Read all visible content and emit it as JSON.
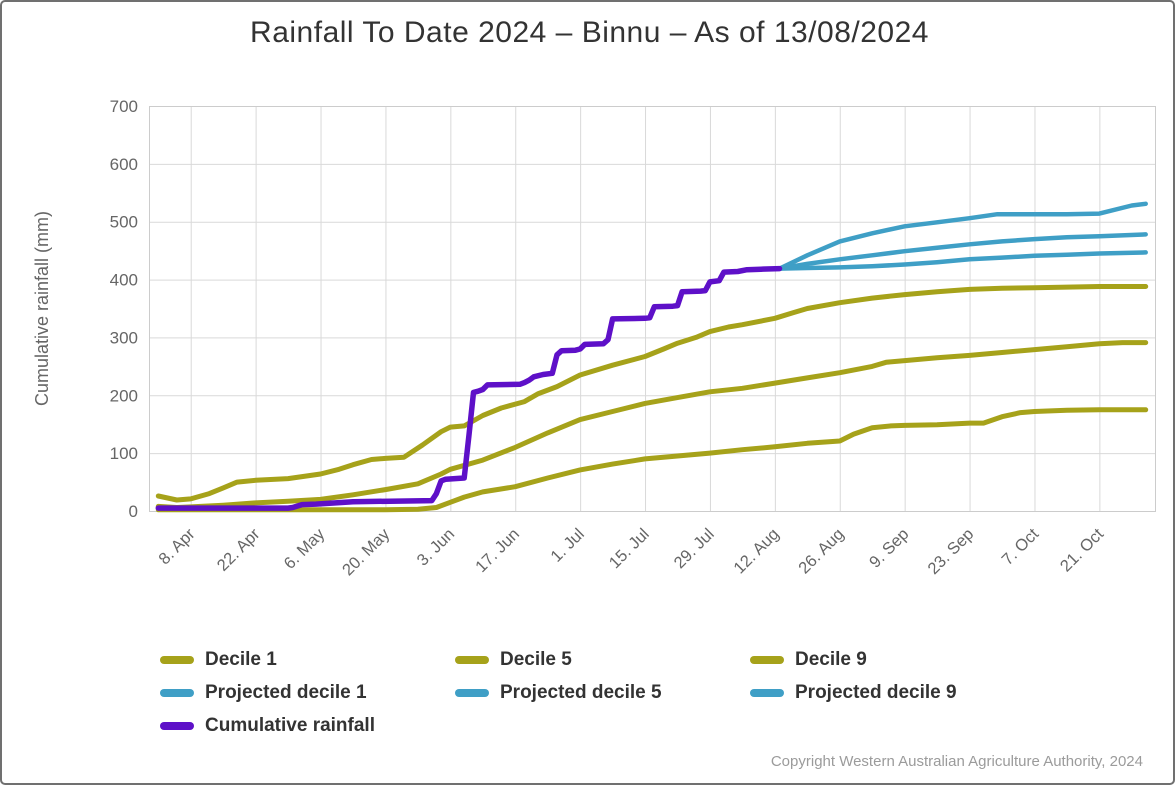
{
  "title": "Rainfall To Date 2024 – Binnu – As of 13/08/2024",
  "copyright": "Copyright Western Australian Agriculture Authority, 2024",
  "colors": {
    "decile": "#a6a21a",
    "projected": "#3f9fc6",
    "cumulative": "#5e10c8",
    "grid": "#d9d9d9",
    "plot_border": "#cccccc",
    "axis_text": "#666666",
    "title_text": "#333333",
    "legend_text": "#333333",
    "copyright_text": "#9b9b9b",
    "page_border": "#707070"
  },
  "legend": {
    "items": [
      {
        "label": "Decile 1",
        "color_key": "decile"
      },
      {
        "label": "Decile 5",
        "color_key": "decile"
      },
      {
        "label": "Decile 9",
        "color_key": "decile"
      },
      {
        "label": "Projected decile 1",
        "color_key": "projected"
      },
      {
        "label": "Projected decile 5",
        "color_key": "projected"
      },
      {
        "label": "Projected decile 9",
        "color_key": "projected"
      },
      {
        "label": "Cumulative rainfall",
        "color_key": "cumulative"
      }
    ]
  },
  "chart_data": {
    "type": "line",
    "title": "Rainfall To Date 2024 – Binnu – As of 13/08/2024",
    "xlabel": "",
    "ylabel": "Cumulative rainfall (mm)",
    "ylim": [
      0,
      700
    ],
    "y_ticks": [
      0,
      100,
      200,
      300,
      400,
      500,
      600,
      700
    ],
    "x_domain_days": [
      -2,
      215
    ],
    "x_ticks": [
      {
        "day": 7,
        "label": "8. Apr"
      },
      {
        "day": 21,
        "label": "22. Apr"
      },
      {
        "day": 35,
        "label": "6. May"
      },
      {
        "day": 49,
        "label": "20. May"
      },
      {
        "day": 63,
        "label": "3. Jun"
      },
      {
        "day": 77,
        "label": "17. Jun"
      },
      {
        "day": 91,
        "label": "1. Jul"
      },
      {
        "day": 105,
        "label": "15. Jul"
      },
      {
        "day": 119,
        "label": "29. Jul"
      },
      {
        "day": 133,
        "label": "12. Aug"
      },
      {
        "day": 147,
        "label": "26. Aug"
      },
      {
        "day": 161,
        "label": "9. Sep"
      },
      {
        "day": 175,
        "label": "23. Sep"
      },
      {
        "day": 189,
        "label": "7. Oct"
      },
      {
        "day": 203,
        "label": "21. Oct"
      }
    ],
    "grid": true,
    "legend_position": "bottom",
    "series": [
      {
        "name": "Decile 1",
        "color_key": "decile",
        "width": 5,
        "points": [
          [
            0,
            2
          ],
          [
            7,
            2
          ],
          [
            14,
            2
          ],
          [
            21,
            2
          ],
          [
            28,
            2
          ],
          [
            35,
            2
          ],
          [
            42,
            2
          ],
          [
            49,
            2
          ],
          [
            56,
            3
          ],
          [
            60,
            6
          ],
          [
            63,
            15
          ],
          [
            66,
            24
          ],
          [
            70,
            33
          ],
          [
            77,
            42
          ],
          [
            84,
            57
          ],
          [
            91,
            71
          ],
          [
            98,
            81
          ],
          [
            105,
            90
          ],
          [
            112,
            95
          ],
          [
            119,
            100
          ],
          [
            126,
            106
          ],
          [
            133,
            111
          ],
          [
            140,
            117
          ],
          [
            147,
            121
          ],
          [
            150,
            133
          ],
          [
            154,
            144
          ],
          [
            158,
            147
          ],
          [
            161,
            148
          ],
          [
            168,
            149
          ],
          [
            175,
            152
          ],
          [
            178,
            152
          ],
          [
            182,
            163
          ],
          [
            186,
            170
          ],
          [
            189,
            172
          ],
          [
            196,
            174
          ],
          [
            203,
            175
          ],
          [
            213,
            175
          ]
        ]
      },
      {
        "name": "Decile 5",
        "color_key": "decile",
        "width": 5,
        "points": [
          [
            0,
            8
          ],
          [
            4,
            6
          ],
          [
            7,
            7
          ],
          [
            14,
            10
          ],
          [
            21,
            14
          ],
          [
            28,
            17
          ],
          [
            35,
            20
          ],
          [
            42,
            28
          ],
          [
            49,
            37
          ],
          [
            56,
            47
          ],
          [
            61,
            64
          ],
          [
            63,
            72
          ],
          [
            70,
            88
          ],
          [
            77,
            110
          ],
          [
            84,
            135
          ],
          [
            91,
            158
          ],
          [
            98,
            172
          ],
          [
            105,
            186
          ],
          [
            112,
            196
          ],
          [
            119,
            206
          ],
          [
            126,
            212
          ],
          [
            133,
            221
          ],
          [
            140,
            230
          ],
          [
            147,
            239
          ],
          [
            154,
            250
          ],
          [
            157,
            257
          ],
          [
            161,
            260
          ],
          [
            168,
            265
          ],
          [
            175,
            269
          ],
          [
            182,
            274
          ],
          [
            189,
            279
          ],
          [
            196,
            284
          ],
          [
            203,
            289
          ],
          [
            208,
            291
          ],
          [
            213,
            291
          ]
        ]
      },
      {
        "name": "Decile 9",
        "color_key": "decile",
        "width": 5,
        "points": [
          [
            0,
            26
          ],
          [
            4,
            19
          ],
          [
            7,
            21
          ],
          [
            11,
            30
          ],
          [
            14,
            40
          ],
          [
            17,
            50
          ],
          [
            21,
            53
          ],
          [
            28,
            56
          ],
          [
            35,
            64
          ],
          [
            39,
            72
          ],
          [
            42,
            80
          ],
          [
            46,
            89
          ],
          [
            49,
            91
          ],
          [
            53,
            93
          ],
          [
            57,
            114
          ],
          [
            61,
            137
          ],
          [
            63,
            145
          ],
          [
            66,
            147
          ],
          [
            70,
            165
          ],
          [
            74,
            178
          ],
          [
            79,
            189
          ],
          [
            82,
            203
          ],
          [
            86,
            215
          ],
          [
            91,
            235
          ],
          [
            98,
            252
          ],
          [
            105,
            267
          ],
          [
            109,
            280
          ],
          [
            112,
            290
          ],
          [
            116,
            300
          ],
          [
            119,
            310
          ],
          [
            123,
            318
          ],
          [
            126,
            322
          ],
          [
            133,
            333
          ],
          [
            137,
            343
          ],
          [
            140,
            350
          ],
          [
            147,
            360
          ],
          [
            154,
            368
          ],
          [
            161,
            374
          ],
          [
            168,
            379
          ],
          [
            175,
            383
          ],
          [
            182,
            385
          ],
          [
            189,
            386
          ],
          [
            196,
            387
          ],
          [
            203,
            388
          ],
          [
            213,
            388
          ]
        ]
      },
      {
        "name": "Projected decile 1",
        "color_key": "projected",
        "width": 4.5,
        "points": [
          [
            134,
            419
          ],
          [
            140,
            420
          ],
          [
            147,
            421
          ],
          [
            154,
            423
          ],
          [
            161,
            426
          ],
          [
            168,
            430
          ],
          [
            175,
            435
          ],
          [
            182,
            438
          ],
          [
            189,
            441
          ],
          [
            196,
            443
          ],
          [
            203,
            445
          ],
          [
            213,
            447
          ]
        ]
      },
      {
        "name": "Projected decile 5",
        "color_key": "projected",
        "width": 4.5,
        "points": [
          [
            134,
            419
          ],
          [
            140,
            427
          ],
          [
            147,
            435
          ],
          [
            154,
            442
          ],
          [
            161,
            449
          ],
          [
            168,
            455
          ],
          [
            175,
            461
          ],
          [
            182,
            466
          ],
          [
            189,
            470
          ],
          [
            196,
            473
          ],
          [
            203,
            475
          ],
          [
            213,
            478
          ]
        ]
      },
      {
        "name": "Projected decile 9",
        "color_key": "projected",
        "width": 4.5,
        "points": [
          [
            134,
            419
          ],
          [
            140,
            442
          ],
          [
            147,
            466
          ],
          [
            154,
            480
          ],
          [
            161,
            492
          ],
          [
            168,
            499
          ],
          [
            175,
            506
          ],
          [
            181,
            513
          ],
          [
            189,
            513
          ],
          [
            196,
            513
          ],
          [
            203,
            514
          ],
          [
            210,
            528
          ],
          [
            213,
            531
          ]
        ]
      },
      {
        "name": "Cumulative rainfall",
        "color_key": "cumulative",
        "width": 5.5,
        "points": [
          [
            0,
            5
          ],
          [
            14,
            5
          ],
          [
            28,
            5
          ],
          [
            29,
            6
          ],
          [
            31,
            11
          ],
          [
            34,
            12
          ],
          [
            42,
            16
          ],
          [
            50,
            17
          ],
          [
            59,
            18
          ],
          [
            60,
            30
          ],
          [
            61,
            52
          ],
          [
            62,
            55
          ],
          [
            66,
            57
          ],
          [
            67,
            130
          ],
          [
            68,
            205
          ],
          [
            69,
            207
          ],
          [
            70,
            210
          ],
          [
            71,
            218
          ],
          [
            78,
            219
          ],
          [
            79,
            222
          ],
          [
            80,
            226
          ],
          [
            81,
            232
          ],
          [
            83,
            236
          ],
          [
            85,
            238
          ],
          [
            86,
            270
          ],
          [
            87,
            277
          ],
          [
            90,
            278
          ],
          [
            91,
            280
          ],
          [
            92,
            288
          ],
          [
            96,
            289
          ],
          [
            97,
            296
          ],
          [
            98,
            332
          ],
          [
            105,
            333
          ],
          [
            106,
            334
          ],
          [
            107,
            353
          ],
          [
            111,
            354
          ],
          [
            112,
            355
          ],
          [
            113,
            379
          ],
          [
            117,
            380
          ],
          [
            118,
            381
          ],
          [
            119,
            396
          ],
          [
            121,
            398
          ],
          [
            122,
            413
          ],
          [
            125,
            414
          ],
          [
            127,
            417
          ],
          [
            130,
            418
          ],
          [
            134,
            419
          ]
        ]
      }
    ]
  }
}
